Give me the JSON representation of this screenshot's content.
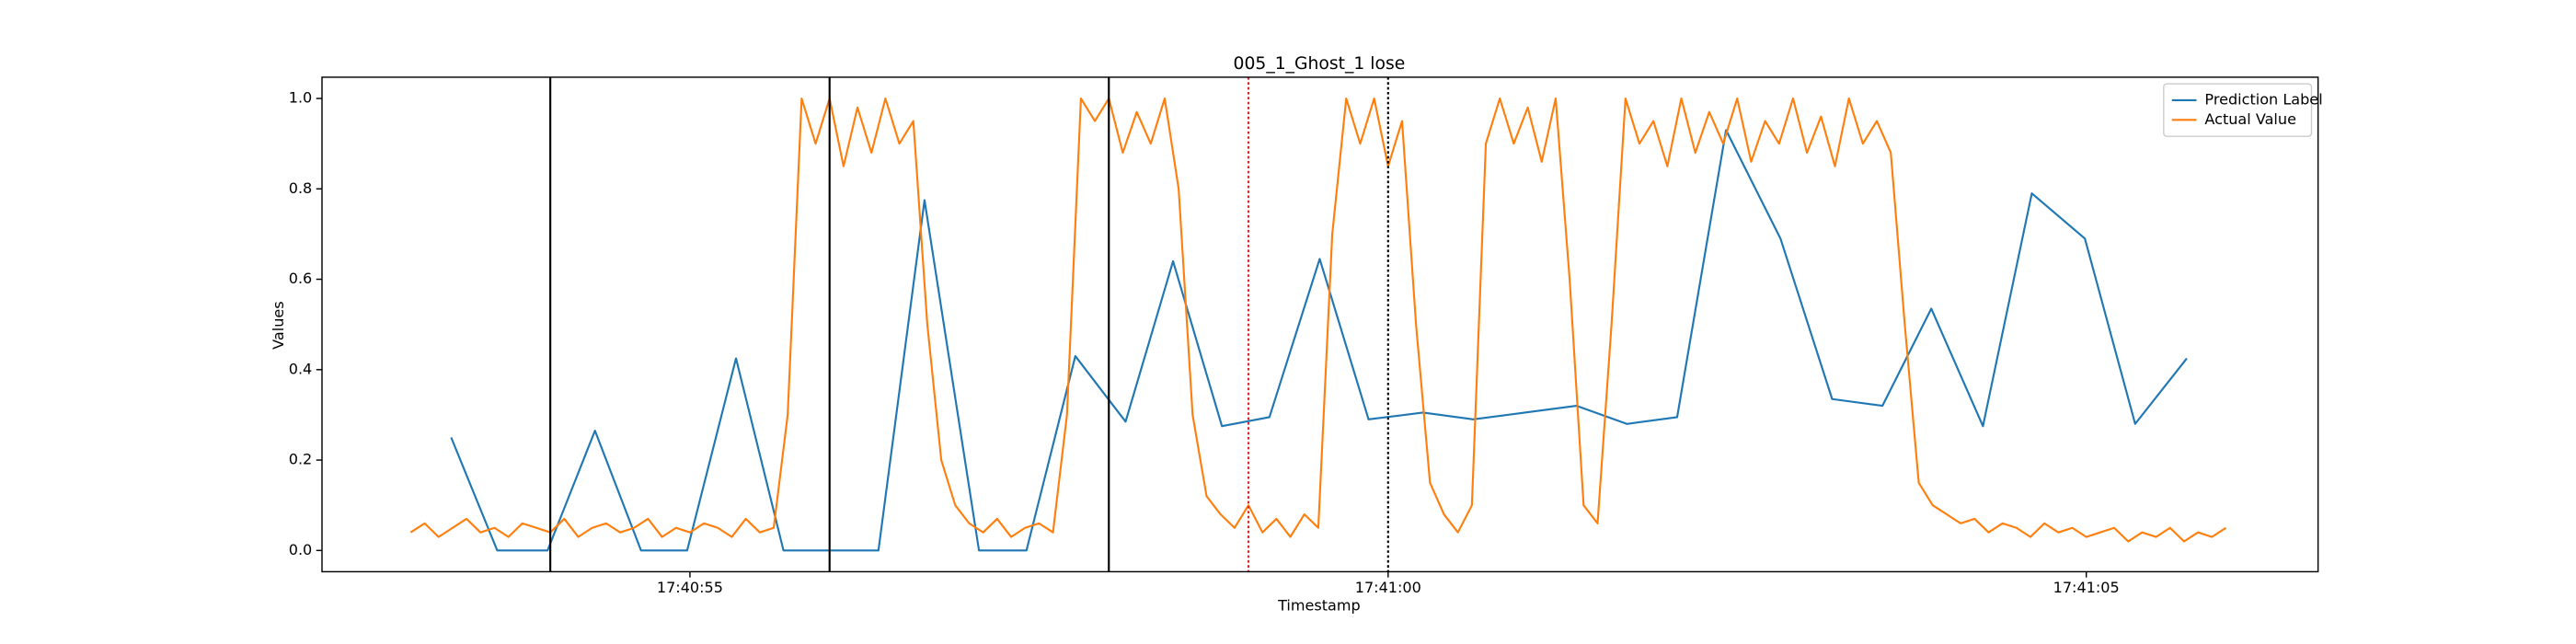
{
  "chart_data": {
    "type": "line",
    "title": "005_1_Ghost_1 lose",
    "x_label": "Timestamp",
    "y_label": "Values",
    "xlim": [
      63652.365,
      63666.66
    ],
    "ylim": [
      -0.047,
      1.047
    ],
    "xticks": [
      {
        "value": 63655,
        "label": "17:40:55"
      },
      {
        "value": 63660,
        "label": "17:41:00"
      },
      {
        "value": 63665,
        "label": "17:41:05"
      }
    ],
    "yticks": [
      {
        "value": 0,
        "label": "0.0"
      },
      0.2,
      0.4,
      0.6,
      0.8,
      {
        "value": 1,
        "label": "1.0"
      }
    ],
    "legend": "upper right",
    "series": [
      {
        "name": "Prediction Label",
        "color": "#1f77b4",
        "x": [
          63653.29,
          63653.62,
          63653.98,
          63654.32,
          63654.65,
          63654.98,
          63655.33,
          63655.67,
          63656.0,
          63656.35,
          63656.68,
          63657.07,
          63657.41,
          63657.76,
          63658.12,
          63658.46,
          63658.81,
          63659.15,
          63659.51,
          63659.86,
          63660.25,
          63660.61,
          63660.98,
          63661.35,
          63661.71,
          63662.07,
          63662.42,
          63662.81,
          63663.18,
          63663.54,
          63663.89,
          63664.26,
          63664.61,
          63664.99,
          63665.35,
          63665.72
        ],
        "values": [
          0.25,
          0,
          0,
          0.265,
          0,
          0,
          0.425,
          0,
          0,
          0,
          0.775,
          0,
          0,
          0.43,
          0.285,
          0.64,
          0.275,
          0.295,
          0.645,
          0.29,
          0.305,
          0.29,
          0.305,
          0.32,
          0.28,
          0.295,
          0.93,
          0.69,
          0.335,
          0.32,
          0.535,
          0.275,
          0.79,
          0.69,
          0.28,
          0.425
        ]
      },
      {
        "name": "Actual Value",
        "color": "#ff7f0e",
        "x": [
          63653.0,
          63653.1,
          63653.2,
          63653.3,
          63653.4,
          63653.5,
          63653.6,
          63653.7,
          63653.8,
          63653.9,
          63654.0,
          63654.1,
          63654.2,
          63654.3,
          63654.4,
          63654.5,
          63654.6,
          63654.7,
          63654.8,
          63654.9,
          63655.0,
          63655.1,
          63655.2,
          63655.3,
          63655.4,
          63655.5,
          63655.6,
          63655.7,
          63655.8,
          63655.9,
          63656.0,
          63656.1,
          63656.2,
          63656.3,
          63656.4,
          63656.5,
          63656.6,
          63656.7,
          63656.8,
          63656.9,
          63657.0,
          63657.1,
          63657.2,
          63657.3,
          63657.4,
          63657.5,
          63657.6,
          63657.7,
          63657.8,
          63657.9,
          63658.0,
          63658.1,
          63658.2,
          63658.3,
          63658.4,
          63658.5,
          63658.6,
          63658.7,
          63658.8,
          63658.9,
          63659.0,
          63659.1,
          63659.2,
          63659.3,
          63659.4,
          63659.5,
          63659.6,
          63659.7,
          63659.8,
          63659.9,
          63660.0,
          63660.1,
          63660.2,
          63660.3,
          63660.4,
          63660.5,
          63660.6,
          63660.7,
          63660.8,
          63660.9,
          63661.0,
          63661.1,
          63661.2,
          63661.3,
          63661.4,
          63661.5,
          63661.6,
          63661.7,
          63661.8,
          63661.9,
          63662.0,
          63662.1,
          63662.2,
          63662.3,
          63662.4,
          63662.5,
          63662.6,
          63662.7,
          63662.8,
          63662.9,
          63663.0,
          63663.1,
          63663.2,
          63663.3,
          63663.4,
          63663.5,
          63663.6,
          63663.7,
          63663.8,
          63663.9,
          63664.0,
          63664.1,
          63664.2,
          63664.3,
          63664.4,
          63664.5,
          63664.6,
          63664.7,
          63664.8,
          63664.9,
          63665.0,
          63665.1,
          63665.2,
          63665.3,
          63665.4,
          63665.5,
          63665.6,
          63665.7,
          63665.8,
          63665.9,
          63666.0
        ],
        "values": [
          0.04,
          0.06,
          0.03,
          0.05,
          0.07,
          0.04,
          0.05,
          0.03,
          0.06,
          0.05,
          0.04,
          0.07,
          0.03,
          0.05,
          0.06,
          0.04,
          0.05,
          0.07,
          0.03,
          0.05,
          0.04,
          0.06,
          0.05,
          0.03,
          0.07,
          0.04,
          0.05,
          0.3,
          1.0,
          0.9,
          1.0,
          0.85,
          0.98,
          0.88,
          1.0,
          0.9,
          0.95,
          0.5,
          0.2,
          0.1,
          0.06,
          0.04,
          0.07,
          0.03,
          0.05,
          0.06,
          0.04,
          0.3,
          1.0,
          0.95,
          1.0,
          0.88,
          0.97,
          0.9,
          1.0,
          0.8,
          0.3,
          0.12,
          0.08,
          0.05,
          0.1,
          0.04,
          0.07,
          0.03,
          0.08,
          0.05,
          0.7,
          1.0,
          0.9,
          1.0,
          0.85,
          0.95,
          0.5,
          0.15,
          0.08,
          0.04,
          0.1,
          0.9,
          1.0,
          0.9,
          0.98,
          0.86,
          1.0,
          0.6,
          0.1,
          0.06,
          0.5,
          1.0,
          0.9,
          0.95,
          0.85,
          1.0,
          0.88,
          0.97,
          0.9,
          1.0,
          0.86,
          0.95,
          0.9,
          1.0,
          0.88,
          0.96,
          0.85,
          1.0,
          0.9,
          0.95,
          0.88,
          0.5,
          0.15,
          0.1,
          0.08,
          0.06,
          0.07,
          0.04,
          0.06,
          0.05,
          0.03,
          0.06,
          0.04,
          0.05,
          0.03,
          0.04,
          0.05,
          0.02,
          0.04,
          0.03,
          0.05,
          0.02,
          0.04,
          0.03,
          0.05
        ]
      }
    ],
    "vlines": [
      {
        "x": 63654.0,
        "color": "#000000",
        "style": "solid"
      },
      {
        "x": 63656.0,
        "color": "#000000",
        "style": "solid"
      },
      {
        "x": 63658.0,
        "color": "#000000",
        "style": "solid"
      },
      {
        "x": 63659.0,
        "color": "#d62728",
        "style": "dotted"
      },
      {
        "x": 63660.0,
        "color": "#000000",
        "style": "dotted"
      }
    ]
  }
}
